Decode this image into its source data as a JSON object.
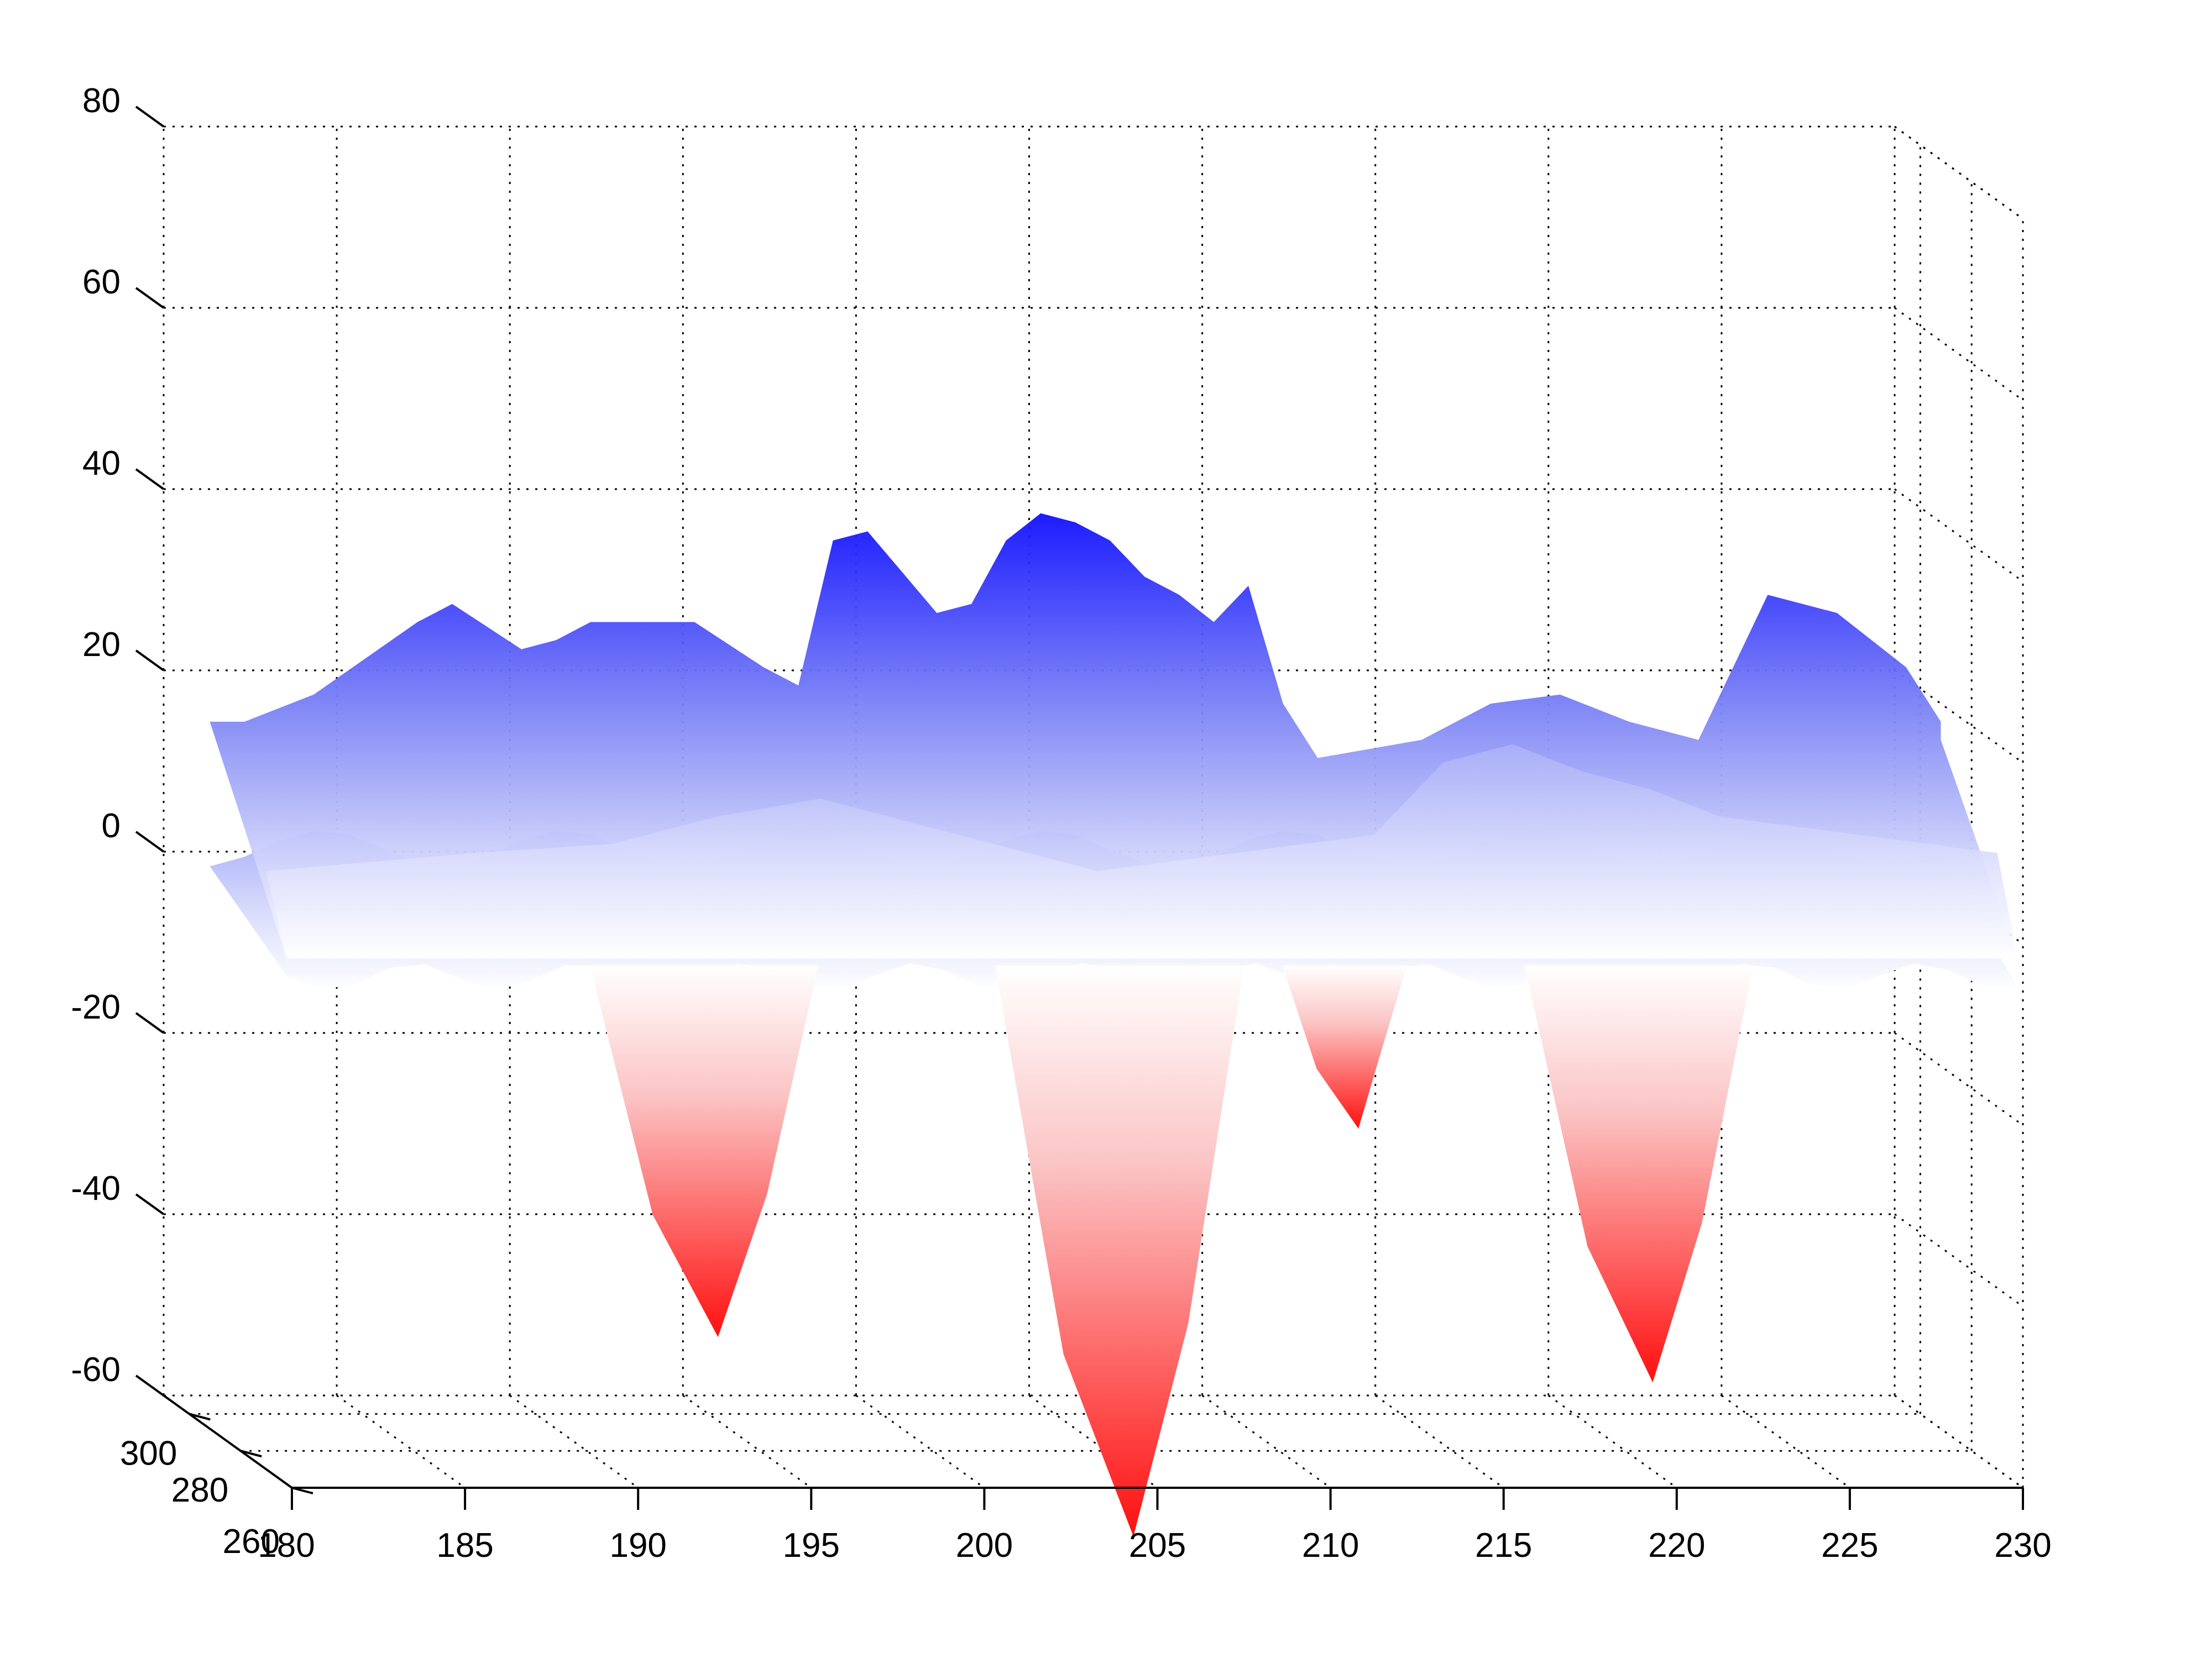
{
  "chart_data": {
    "type": "surface",
    "view": "3d",
    "x_axis": {
      "ticks": [
        180,
        185,
        190,
        195,
        200,
        205,
        210,
        215,
        220,
        225,
        230
      ],
      "tick_labels": [
        "180",
        "185",
        "190",
        "195",
        "200",
        "205",
        "210",
        "215",
        "220",
        "225",
        "230"
      ],
      "range": [
        180,
        230
      ]
    },
    "y_axis": {
      "ticks": [
        260,
        280,
        300
      ],
      "tick_labels": [
        "260",
        "280",
        "300"
      ],
      "range": [
        260,
        310
      ]
    },
    "z_axis": {
      "ticks": [
        -60,
        -40,
        -20,
        0,
        20,
        40,
        60,
        80
      ],
      "tick_labels": [
        "-60",
        "-40",
        "-20",
        "0",
        "20",
        "40",
        "60",
        "80"
      ],
      "range": [
        -65,
        80
      ]
    },
    "grid": true,
    "colors": {
      "positive": "#0000ff",
      "negative": "#ff0000",
      "zero": "#ffffff"
    },
    "back_ridge_profile": [
      [
        180,
        18
      ],
      [
        181,
        18
      ],
      [
        183,
        21
      ],
      [
        186,
        29
      ],
      [
        187,
        31
      ],
      [
        189,
        26
      ],
      [
        190,
        27
      ],
      [
        191,
        29
      ],
      [
        194,
        29
      ],
      [
        196,
        24
      ],
      [
        197,
        22
      ],
      [
        198,
        38
      ],
      [
        199,
        39
      ],
      [
        201,
        30
      ],
      [
        202,
        31
      ],
      [
        203,
        38
      ],
      [
        204,
        41
      ],
      [
        205,
        40
      ],
      [
        206,
        38
      ],
      [
        207,
        34
      ],
      [
        208,
        32
      ],
      [
        209,
        29
      ],
      [
        210,
        33
      ],
      [
        211,
        20
      ],
      [
        212,
        14
      ],
      [
        215,
        16
      ],
      [
        217,
        20
      ],
      [
        219,
        21
      ],
      [
        221,
        18
      ],
      [
        223,
        16
      ],
      [
        225,
        32
      ],
      [
        227,
        30
      ],
      [
        229,
        24
      ],
      [
        231,
        18
      ],
      [
        232,
        16
      ]
    ],
    "negative_wells": [
      {
        "x": 192.5,
        "min": -45
      },
      {
        "x": 204.5,
        "min": -67
      },
      {
        "x": 211.0,
        "min": -22
      },
      {
        "x": 219.5,
        "min": -50
      }
    ]
  }
}
